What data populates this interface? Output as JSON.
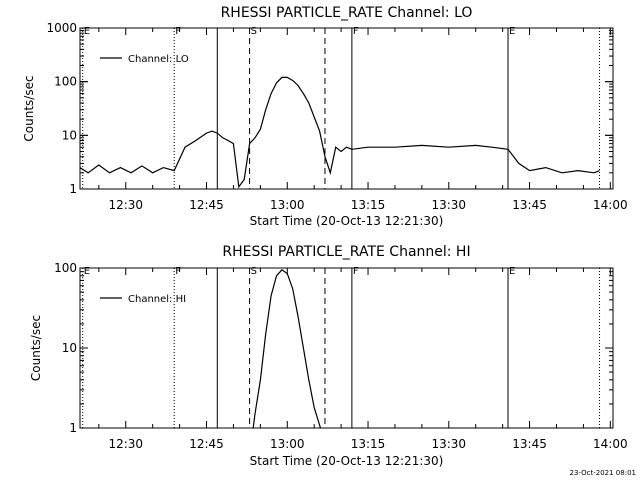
{
  "footer": {
    "timestamp": "23-Oct-2021 08:01"
  },
  "chart_data": [
    {
      "type": "line",
      "title": "RHESSI PARTICLE_RATE Channel: LO",
      "xlabel": "Start Time (20-Oct-13 12:21:30)",
      "ylabel": "Counts/sec",
      "y_scale": "log",
      "ylim": [
        1,
        1000
      ],
      "y_ticks": [
        "1",
        "10",
        "100",
        "1000"
      ],
      "xlim": [
        "12:21:30",
        "14:00:30"
      ],
      "x_ticks": [
        "12:30",
        "12:45",
        "13:00",
        "13:15",
        "13:30",
        "13:45",
        "14:00"
      ],
      "legend": {
        "placement": "top-left",
        "label": "Channel: LO"
      },
      "flag_markers": [
        {
          "label": "E",
          "time": "12:22",
          "style": "dotted"
        },
        {
          "label": "F",
          "time": "12:39",
          "style": "dotted"
        },
        {
          "label": "",
          "time": "12:47",
          "style": "solid"
        },
        {
          "label": "S",
          "time": "12:53",
          "style": "dashed"
        },
        {
          "label": "",
          "time": "13:07",
          "style": "dashed"
        },
        {
          "label": "F",
          "time": "13:12",
          "style": "solid"
        },
        {
          "label": "E",
          "time": "13:41",
          "style": "solid"
        },
        {
          "label": "",
          "time": "13:58",
          "style": "dotted"
        }
      ],
      "series": [
        {
          "name": "",
          "x": [
            "12:21:30",
            "12:23",
            "12:25",
            "12:27",
            "12:29",
            "12:31",
            "12:33",
            "12:35",
            "12:37",
            "12:39",
            "12:41",
            "12:43",
            "12:45",
            "12:46",
            "12:47",
            "12:48",
            "12:49",
            "12:50",
            "12:51",
            "12:52",
            "12:53",
            "12:54",
            "12:55",
            "12:56",
            "12:57",
            "12:58",
            "12:59",
            "13:00",
            "13:01",
            "13:02",
            "13:03",
            "13:04",
            "13:05",
            "13:06",
            "13:07",
            "13:08",
            "13:09",
            "13:10",
            "13:11",
            "13:12",
            "13:15",
            "13:20",
            "13:25",
            "13:30",
            "13:35",
            "13:38",
            "13:41",
            "13:43",
            "13:45",
            "13:48",
            "13:51",
            "13:54",
            "13:57",
            "13:58"
          ],
          "y": [
            2.5,
            2,
            2.8,
            2,
            2.5,
            2,
            2.7,
            2,
            2.5,
            2.2,
            6,
            8,
            11,
            12,
            11,
            9,
            8,
            7,
            1.1,
            1.5,
            7,
            9,
            13,
            30,
            60,
            95,
            120,
            120,
            105,
            85,
            60,
            40,
            22,
            12,
            4,
            2,
            6,
            5,
            6,
            5.5,
            6,
            6,
            6.5,
            6,
            6.5,
            6,
            5.5,
            3,
            2.2,
            2.5,
            2,
            2.2,
            2,
            2.2
          ]
        }
      ]
    },
    {
      "type": "line",
      "title": "RHESSI PARTICLE_RATE Channel: HI",
      "xlabel": "Start Time (20-Oct-13 12:21:30)",
      "ylabel": "Counts/sec",
      "y_scale": "log",
      "ylim": [
        1,
        100
      ],
      "y_ticks": [
        "1",
        "10",
        "100"
      ],
      "xlim": [
        "12:21:30",
        "14:00:30"
      ],
      "x_ticks": [
        "12:30",
        "12:45",
        "13:00",
        "13:15",
        "13:30",
        "13:45",
        "14:00"
      ],
      "legend": {
        "placement": "top-left",
        "label": "Channel: HI"
      },
      "flag_markers": [
        {
          "label": "E",
          "time": "12:22",
          "style": "dotted"
        },
        {
          "label": "F",
          "time": "12:39",
          "style": "dotted"
        },
        {
          "label": "",
          "time": "12:47",
          "style": "solid"
        },
        {
          "label": "S",
          "time": "12:53",
          "style": "dashed"
        },
        {
          "label": "",
          "time": "13:07",
          "style": "dashed"
        },
        {
          "label": "F",
          "time": "13:12",
          "style": "solid"
        },
        {
          "label": "E",
          "time": "13:41",
          "style": "solid"
        },
        {
          "label": "",
          "time": "13:58",
          "style": "dotted"
        }
      ],
      "series": [
        {
          "name": "",
          "x": [
            "12:53:40",
            "12:54",
            "12:55",
            "12:56",
            "12:57",
            "12:58",
            "12:59",
            "13:00",
            "13:01",
            "13:02",
            "13:03",
            "13:04",
            "13:05",
            "13:06:10"
          ],
          "y": [
            1,
            1.5,
            4,
            15,
            45,
            80,
            95,
            85,
            55,
            25,
            10,
            4,
            1.8,
            1
          ]
        }
      ]
    }
  ]
}
